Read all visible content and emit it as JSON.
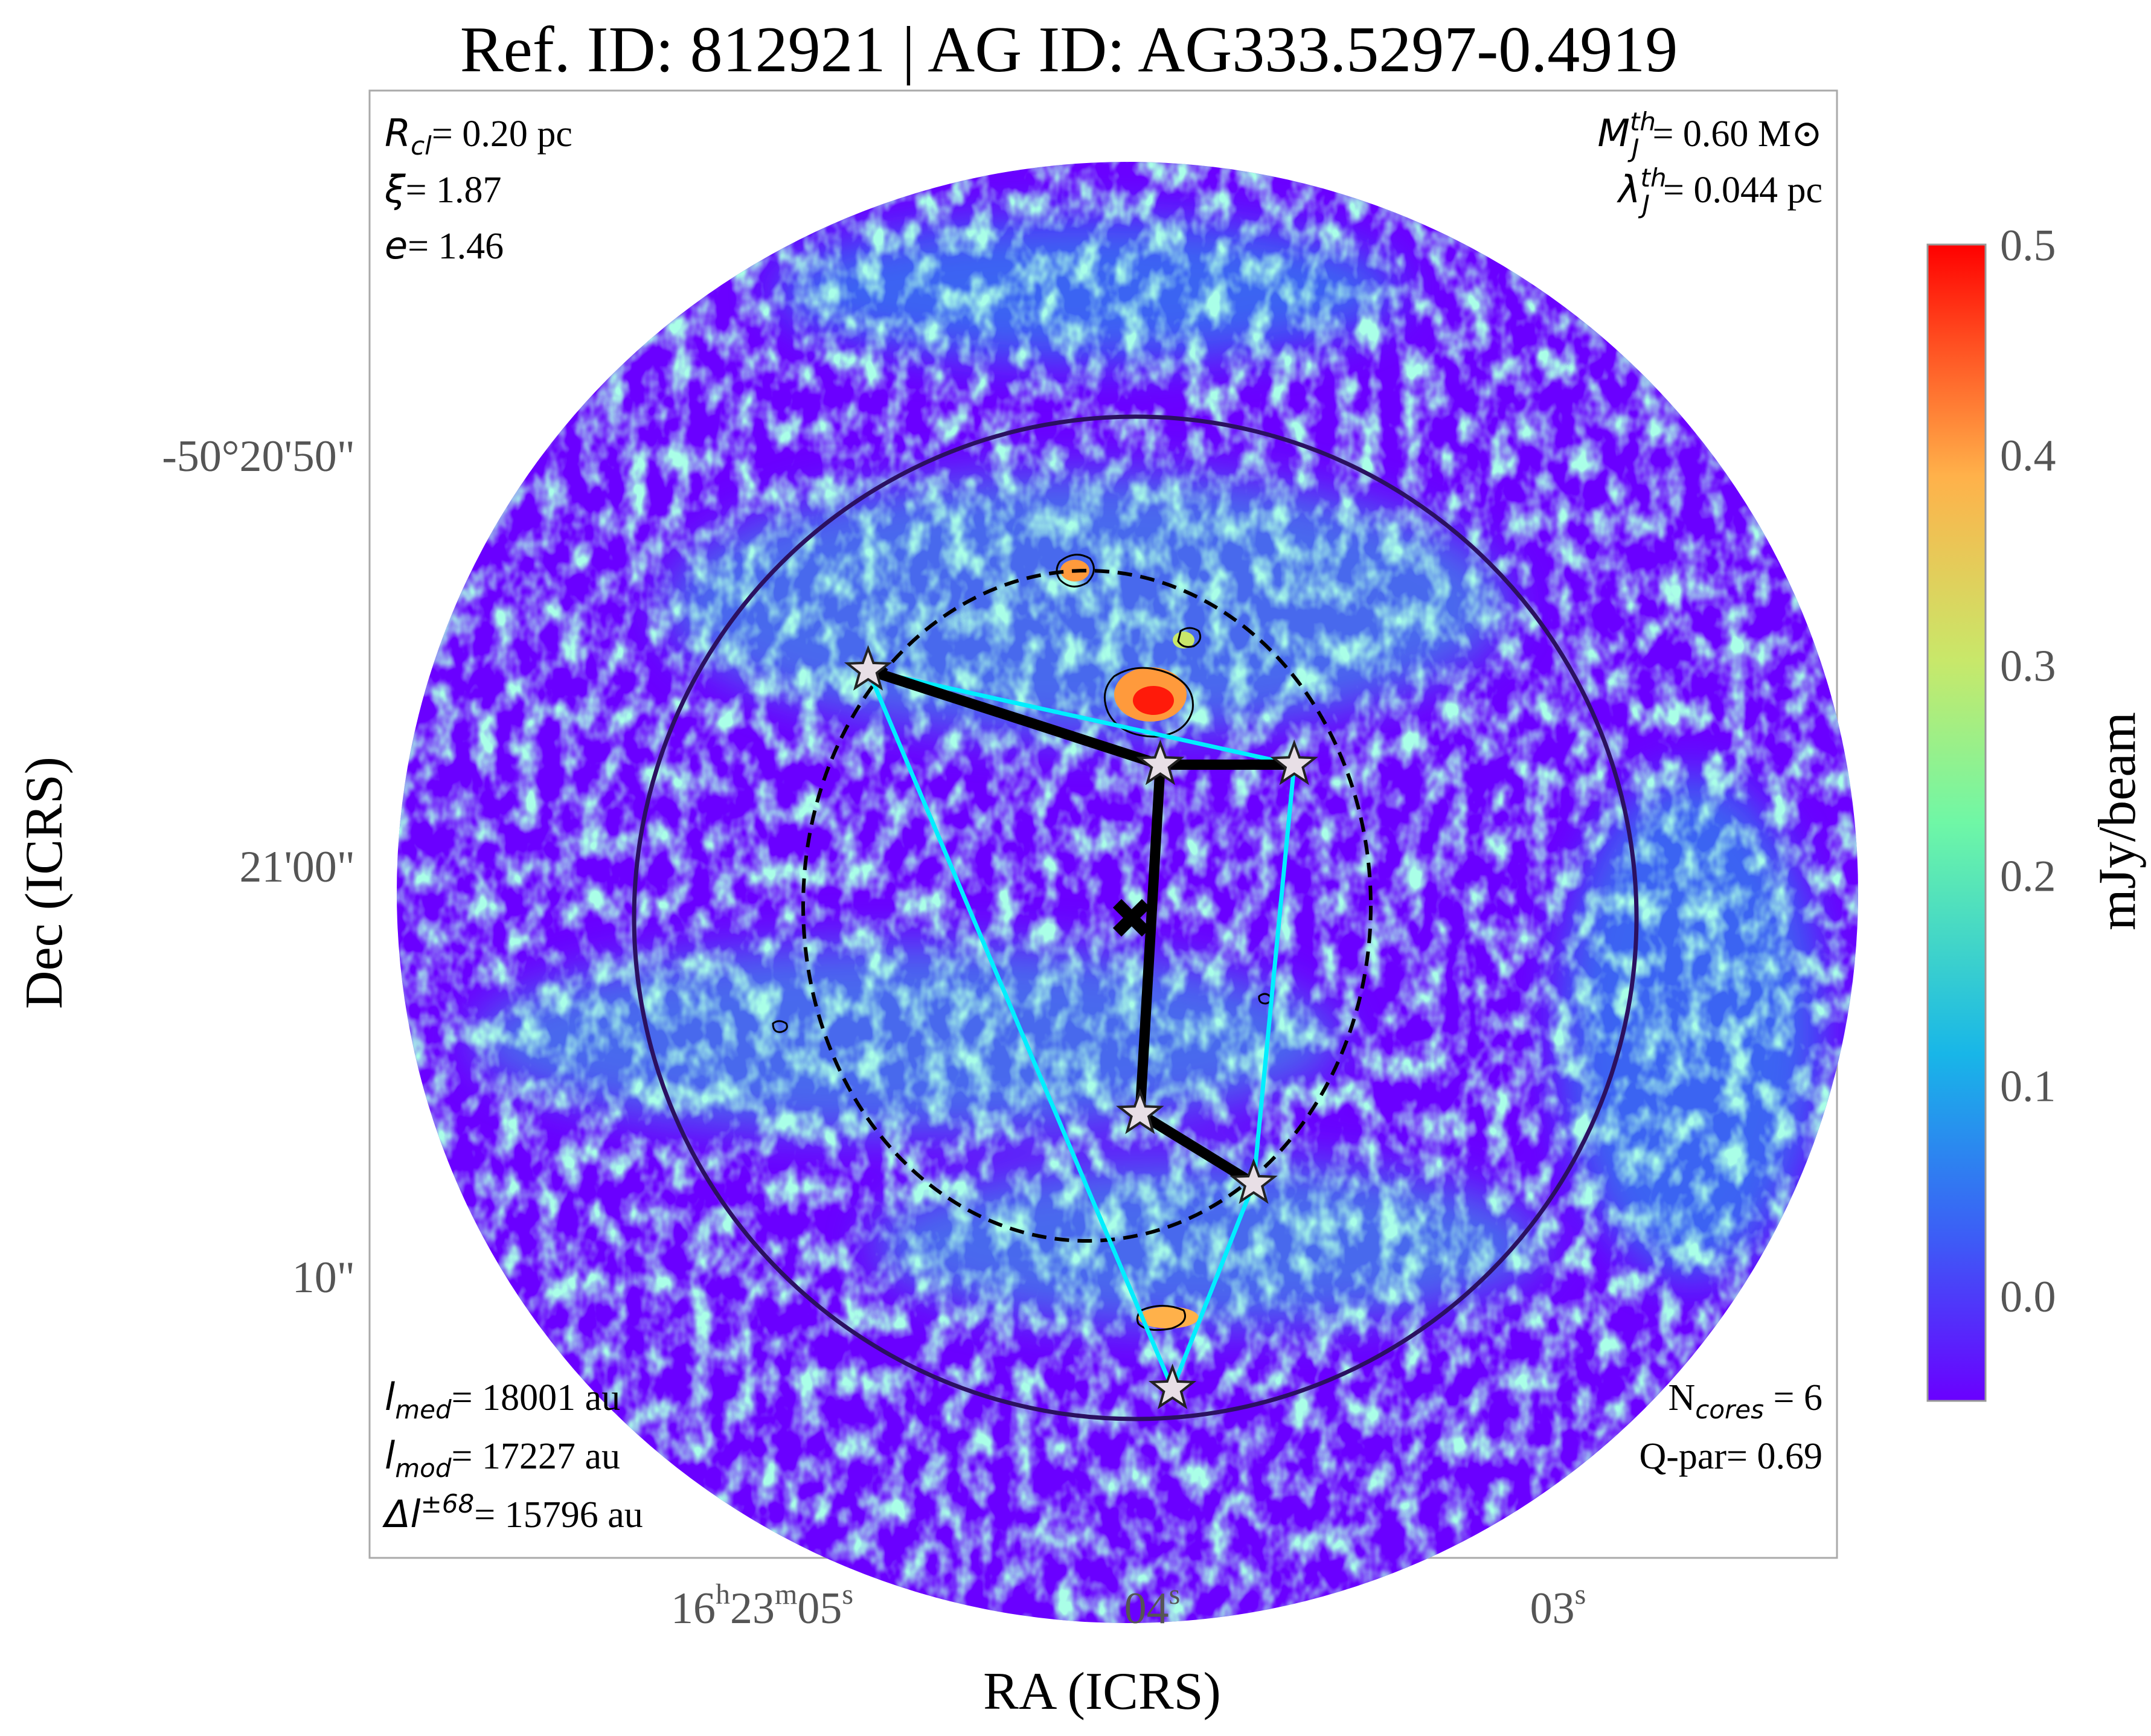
{
  "title": "Ref. ID: 812921 | AG ID: AG333.5297-0.4919",
  "xlabel": "RA (ICRS)",
  "ylabel": "Dec (ICRS)",
  "colorbar_label": "mJy/beam",
  "colormap": [
    "#6a00ff",
    "#3d5cf6",
    "#18b6e8",
    "#6ff7a6",
    "#c8e86a",
    "#ffb14a",
    "#ff4a1f",
    "#ff0000"
  ],
  "annotations": {
    "top_left": [
      {
        "sym": "R",
        "sub": "cl",
        "sup": "",
        "val": "= 0.20 pc"
      },
      {
        "sym": "ξ",
        "sub": "",
        "sup": "",
        "val": "= 1.87"
      },
      {
        "sym": "e",
        "sub": "",
        "sup": "",
        "val": "= 1.46"
      }
    ],
    "top_right": [
      {
        "sym": "M",
        "sub": "J",
        "sup": "th",
        "val": "= 0.60 M⊙"
      },
      {
        "sym": "λ",
        "sub": "J",
        "sup": "th",
        "val": "= 0.044 pc"
      }
    ],
    "bottom_left": [
      {
        "sym": "l",
        "sub": "med",
        "sup": "",
        "val": "= 18001 au"
      },
      {
        "sym": "l",
        "sub": "mod",
        "sup": "",
        "val": "= 17227 au"
      },
      {
        "sym": "Δl",
        "sub": "",
        "sup": "±68",
        "val": "= 15796 au"
      }
    ],
    "bottom_right": [
      {
        "sym": "N",
        "sub": "cores",
        "sup": "",
        "val": " = 6",
        "plain": true
      },
      {
        "sym": "Q-par",
        "sub": "",
        "sup": "",
        "val": "= 0.69",
        "plain": true
      }
    ]
  },
  "x_ticks": [
    {
      "h": "16",
      "m": "23",
      "s": "05"
    },
    {
      "h": "",
      "m": "",
      "s": "04"
    },
    {
      "h": "",
      "m": "",
      "s": "03"
    }
  ],
  "y_ticks": [
    "-50°20'50\"",
    "21'00\"",
    "10\""
  ],
  "chart_data": {
    "type": "heatmap",
    "title": "Ref. ID: 812921 | AG ID: AG333.5297-0.4919",
    "xlabel": "RA (ICRS)",
    "ylabel": "Dec (ICRS)",
    "colorbar": {
      "label": "mJy/beam",
      "min": -0.05,
      "max": 0.5,
      "ticks": [
        "0.0",
        "0.1",
        "0.2",
        "0.3",
        "0.4",
        "0.5"
      ]
    },
    "x_tick_labels": [
      "16h23m05s",
      "04s",
      "03s"
    ],
    "y_tick_labels": [
      "-50°20'50\"",
      "21'00\"",
      "10\""
    ],
    "cores": [
      {
        "id": 1,
        "ra_s": 4.7,
        "dec_arcsec": 55.0
      },
      {
        "id": 2,
        "ra_s": 3.98,
        "dec_arcsec": 57.3
      },
      {
        "id": 3,
        "ra_s": 3.65,
        "dec_arcsec": 57.3
      },
      {
        "id": 4,
        "ra_s": 4.03,
        "dec_arcsec": 65.8
      },
      {
        "id": 5,
        "ra_s": 3.75,
        "dec_arcsec": 67.5
      },
      {
        "id": 6,
        "ra_s": 3.95,
        "dec_arcsec": 72.5
      }
    ],
    "center": {
      "ra_s": 4.03,
      "dec_arcsec": 62.2
    },
    "mst_edges": [
      [
        1,
        2
      ],
      [
        2,
        3
      ],
      [
        2,
        4
      ],
      [
        4,
        5
      ]
    ],
    "hull_edges": [
      [
        1,
        3
      ],
      [
        3,
        5
      ],
      [
        5,
        6
      ],
      [
        6,
        1
      ]
    ],
    "stats": {
      "R_cl_pc": 0.2,
      "xi": 1.87,
      "e": 1.46,
      "MJ_th_Msun": 0.6,
      "lambdaJ_th_pc": 0.044,
      "l_med_au": 18001,
      "l_mod_au": 17227,
      "delta_l_68_au": 15796,
      "N_cores": 6,
      "Q_par": 0.69
    }
  }
}
